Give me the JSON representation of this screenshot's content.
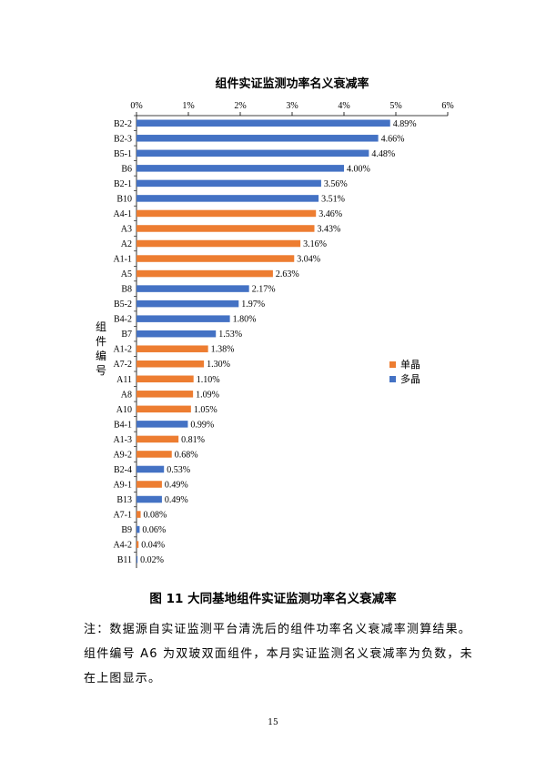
{
  "chart_data": {
    "type": "bar",
    "title": "组件实证监测功率名义衰减率",
    "ylabel": "组件编号",
    "xlim": [
      0,
      6
    ],
    "xticks": [
      "0%",
      "1%",
      "2%",
      "3%",
      "4%",
      "5%",
      "6%"
    ],
    "value_unit": "%",
    "orientation": "horizontal",
    "grid": false,
    "legend_position": "right",
    "legend": [
      {
        "name": "单晶",
        "color": "#ED7D31"
      },
      {
        "name": "多晶",
        "color": "#4472C4"
      }
    ],
    "categories": [
      "B2-2",
      "B2-3",
      "B5-1",
      "B6",
      "B2-1",
      "B10",
      "A4-1",
      "A3",
      "A2",
      "A1-1",
      "A5",
      "B8",
      "B5-2",
      "B4-2",
      "B7",
      "A1-2",
      "A7-2",
      "A11",
      "A8",
      "A10",
      "B4-1",
      "A1-3",
      "A9-2",
      "B2-4",
      "A9-1",
      "B13",
      "A7-1",
      "B9",
      "A4-2",
      "B11"
    ],
    "values": [
      4.89,
      4.66,
      4.48,
      4.0,
      3.56,
      3.51,
      3.46,
      3.43,
      3.16,
      3.04,
      2.63,
      2.17,
      1.97,
      1.8,
      1.53,
      1.38,
      1.3,
      1.1,
      1.09,
      1.05,
      0.99,
      0.81,
      0.68,
      0.53,
      0.49,
      0.49,
      0.08,
      0.06,
      0.04,
      0.02
    ],
    "labels": [
      "4.89%",
      "4.66%",
      "4.48%",
      "4.00%",
      "3.56%",
      "3.51%",
      "3.46%",
      "3.43%",
      "3.16%",
      "3.04%",
      "2.63%",
      "2.17%",
      "1.97%",
      "1.80%",
      "1.53%",
      "1.38%",
      "1.30%",
      "1.10%",
      "1.09%",
      "1.05%",
      "0.99%",
      "0.81%",
      "0.68%",
      "0.53%",
      "0.49%",
      "0.49%",
      "0.08%",
      "0.06%",
      "0.04%",
      "0.02%"
    ],
    "series_index": [
      1,
      1,
      1,
      1,
      1,
      1,
      0,
      0,
      0,
      0,
      0,
      1,
      1,
      1,
      1,
      0,
      0,
      0,
      0,
      0,
      1,
      0,
      0,
      1,
      0,
      1,
      0,
      1,
      0,
      1
    ]
  },
  "figure": {
    "caption": "图 11 大同基地组件实证监测功率名义衰减率"
  },
  "note": {
    "lines": [
      "注：数据源自实证监测平台清洗后的组件功率名义衰减率测算结果。",
      "组件编号 A6 为双玻双面组件，本月实证监测名义衰减率为负数，未",
      "在上图显示。"
    ]
  },
  "page": {
    "number": "15"
  }
}
